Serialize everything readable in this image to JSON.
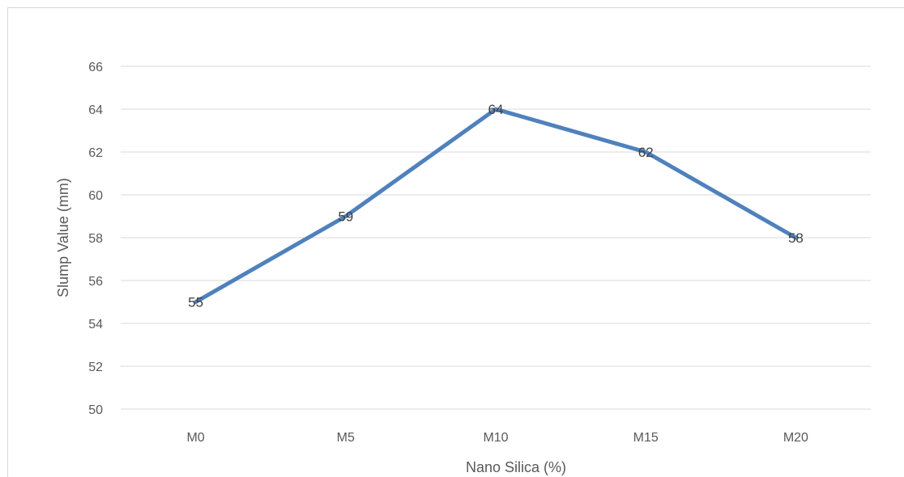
{
  "chart_data": {
    "type": "line",
    "title": "",
    "xlabel": "Nano Silica (%)",
    "ylabel": "Slump Value (mm)",
    "categories": [
      "M0",
      "M5",
      "M10",
      "M15",
      "M20"
    ],
    "series": [
      {
        "values": [
          55,
          59,
          64,
          62,
          58
        ],
        "color": "#4f81bd",
        "data_labels": [
          "55",
          "59",
          "64",
          "62",
          "58"
        ]
      }
    ],
    "yticks": [
      50,
      52,
      54,
      56,
      58,
      60,
      62,
      64,
      66
    ],
    "ylim": [
      50,
      66
    ],
    "grid": true,
    "legend": "none",
    "colors": {
      "gridline": "#d9d9d9",
      "text": "#595959",
      "line": "#4f81bd"
    }
  }
}
